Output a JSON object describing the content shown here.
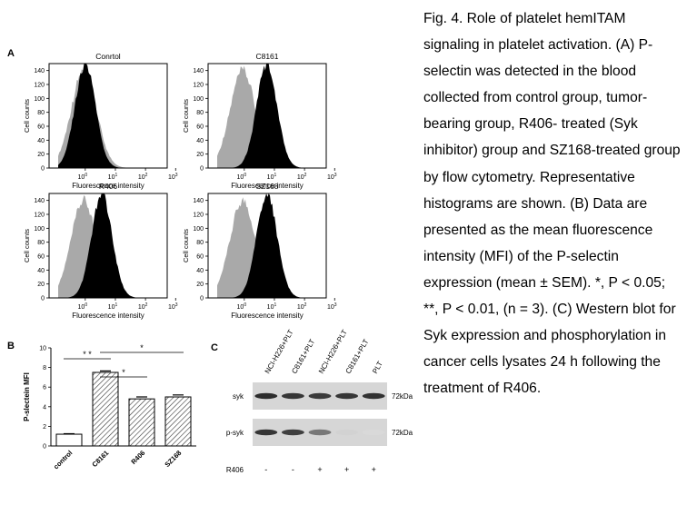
{
  "caption": "Fig. 4. Role of platelet hemITAM signaling in platelet activation. (A) P-selectin was detected in the blood collected from control group, tumor-bearing group, R406- treated (Syk inhibitor) group and SZ168-treated group by flow cytometry. Representative histograms are shown. (B) Data are presented as the mean fluorescence intensity (MFI) of the P-selectin expression (mean ± SEM). *, P < 0.05; **, P < 0.01, (n = 3). (C) Western blot for Syk expression and phosphorylation in cancer cells lysates 24 h following the treatment of R406.",
  "panel_letters": {
    "a": "A",
    "b": "B",
    "c": "C"
  },
  "histograms": [
    {
      "title": "Conrtol",
      "shift": 0.0
    },
    {
      "title": "C8161",
      "shift": 0.75
    },
    {
      "title": "R406",
      "shift": 0.55
    },
    {
      "title": "SZ168",
      "shift": 0.75
    }
  ],
  "histogram_axes": {
    "ylabel": "Cell counts",
    "xlabel": "Fluorescence intensity",
    "yticks": [
      "0",
      "20",
      "40",
      "60",
      "80",
      "100",
      "120",
      "140"
    ],
    "xticks": [
      {
        "base": "10",
        "exp": "0"
      },
      {
        "base": "10",
        "exp": "1"
      },
      {
        "base": "10",
        "exp": "2"
      },
      {
        "base": "10",
        "exp": "3"
      }
    ]
  },
  "chart_data": {
    "type": "bar",
    "categories": [
      "control",
      "C8161",
      "R406",
      "SZ168"
    ],
    "values": [
      1.2,
      7.5,
      4.8,
      5.0
    ],
    "errors": [
      0.05,
      0.15,
      0.2,
      0.2
    ],
    "ylabel": "P-slectein MFI",
    "yticks": [
      "0",
      "2",
      "4",
      "6",
      "8",
      "10"
    ],
    "ylim": [
      0,
      10
    ],
    "significance": [
      {
        "from": 0,
        "to": 1,
        "label": "* *"
      },
      {
        "from": 1,
        "to": 2,
        "label": "*"
      },
      {
        "from": 1,
        "to": 3,
        "label": "*"
      }
    ]
  },
  "western_blot": {
    "lanes": [
      "NCI-H226+PLT",
      "C8161+PLT",
      "NCI-H226+PLT",
      "C8161+PLT",
      "PLT"
    ],
    "rows": [
      {
        "label": "syk",
        "size": "72kDa",
        "intensity": [
          0.95,
          0.9,
          0.88,
          0.9,
          0.92
        ]
      },
      {
        "label": "p-syk",
        "size": "72kDa",
        "intensity": [
          0.9,
          0.85,
          0.55,
          0.08,
          0.04
        ]
      }
    ],
    "treatment": {
      "label": "R406",
      "signs": [
        "-",
        "-",
        "+",
        "+",
        "+"
      ]
    }
  }
}
